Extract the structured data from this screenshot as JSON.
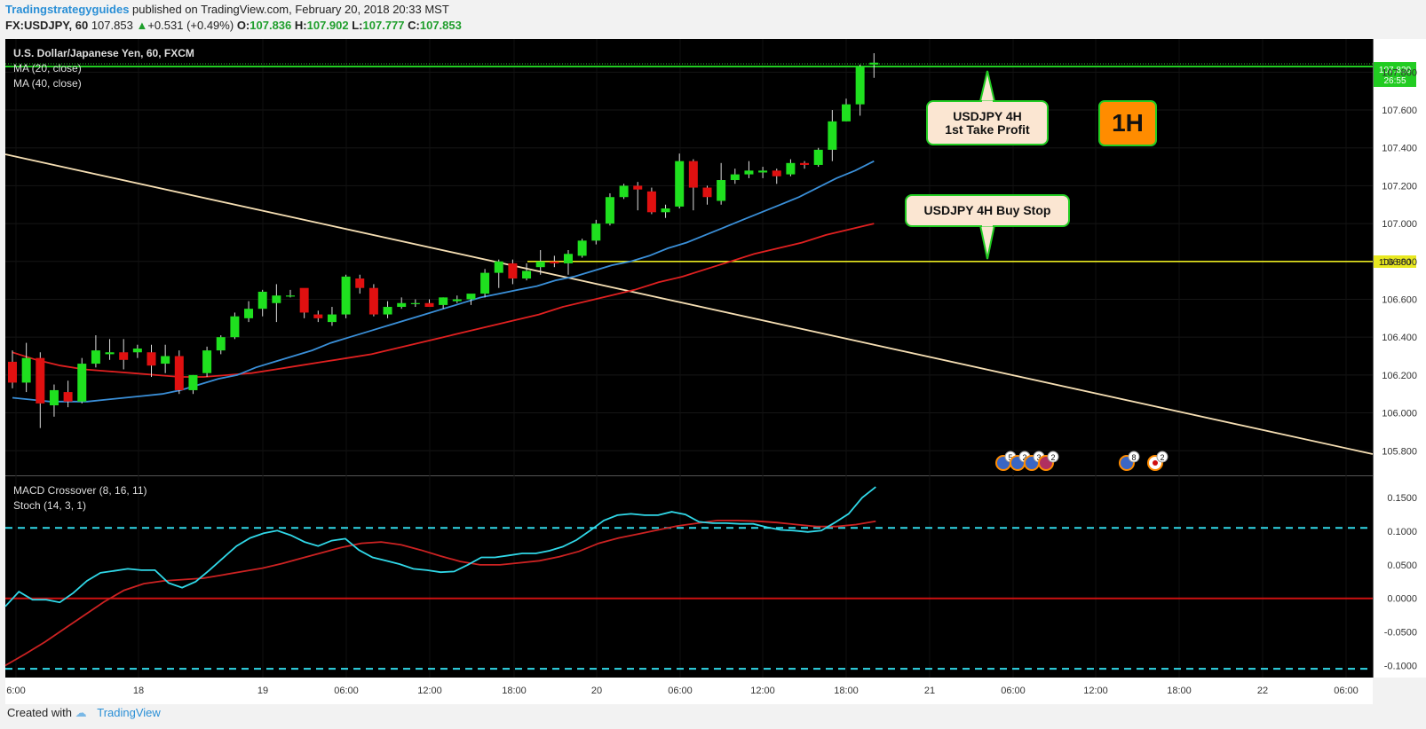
{
  "header": {
    "author": "Tradingstrategyguides",
    "published": " published on TradingView.com, February 20, 2018 20:33 MST",
    "symbol": "FX:USDJPY, 60",
    "last": "107.853",
    "change": "+0.531 (+0.49%)",
    "o_label": "O:",
    "o": "107.836",
    "h_label": "H:",
    "h": "107.902",
    "l_label": "L:",
    "l": "107.777",
    "c_label": "C:",
    "c": "107.853"
  },
  "main_legend": {
    "title": "U.S. Dollar/Japanese Yen, 60, FXCM",
    "ma20": "MA (20, close)",
    "ma40": "MA (40, close)"
  },
  "sub_legend": {
    "macd": "MACD Crossover (8, 16, 11)",
    "stoch": "Stoch (14, 3, 1)"
  },
  "callouts": {
    "take_profit_line1": "USDJPY 4H",
    "take_profit_line2": "1st Take Profit",
    "buy_stop": "USDJPY 4H Buy Stop",
    "timeframe_badge": "1H"
  },
  "price_tags": {
    "resistance": "107.830",
    "resistance_sub": "26:55",
    "support": "106.800"
  },
  "event_badges": [
    "5",
    "2",
    "3",
    "2",
    "8",
    "2"
  ],
  "footer": {
    "created": "Created with",
    "brand": "TradingView"
  },
  "colors": {
    "up": "#1fe01f",
    "down": "#e01010",
    "ma20": "#3a8fd8",
    "ma40": "#e02020",
    "trendline": "#f5deb3",
    "support": "#e8e820",
    "resistance": "#22cc22",
    "macd": "#30d8e8",
    "signal": "#cc2222",
    "badge": "#ff8c00"
  },
  "chart_data": [
    {
      "type": "candlestick",
      "title": "U.S. Dollar/Japanese Yen, 60, FXCM",
      "x_tick_labels": [
        "6:00",
        "18",
        "19",
        "06:00",
        "12:00",
        "18:00",
        "20",
        "06:00",
        "12:00",
        "18:00",
        "21",
        "06:00",
        "12:00",
        "18:00",
        "22",
        "06:00"
      ],
      "y_tick_labels": [
        "105.800",
        "106.000",
        "106.200",
        "106.400",
        "106.600",
        "106.800",
        "107.000",
        "107.200",
        "107.400",
        "107.600",
        "107.800"
      ],
      "ylim": [
        105.67,
        107.98
      ],
      "ohlc": [
        [
          106.27,
          106.33,
          106.13,
          106.16
        ],
        [
          106.16,
          106.37,
          106.11,
          106.29
        ],
        [
          106.29,
          106.32,
          105.92,
          106.05
        ],
        [
          106.04,
          106.15,
          105.98,
          106.12
        ],
        [
          106.11,
          106.17,
          106.03,
          106.06
        ],
        [
          106.06,
          106.29,
          106.05,
          106.26
        ],
        [
          106.26,
          106.41,
          106.24,
          106.33
        ],
        [
          106.31,
          106.39,
          106.28,
          106.32
        ],
        [
          106.32,
          106.39,
          106.23,
          106.28
        ],
        [
          106.32,
          106.36,
          106.29,
          106.34
        ],
        [
          106.32,
          106.36,
          106.19,
          106.25
        ],
        [
          106.26,
          106.36,
          106.21,
          106.3
        ],
        [
          106.3,
          106.33,
          106.1,
          106.12
        ],
        [
          106.12,
          106.2,
          106.1,
          106.2
        ],
        [
          106.21,
          106.35,
          106.19,
          106.33
        ],
        [
          106.33,
          106.41,
          106.31,
          106.4
        ],
        [
          106.4,
          106.53,
          106.39,
          106.51
        ],
        [
          106.5,
          106.59,
          106.48,
          106.55
        ],
        [
          106.55,
          106.65,
          106.51,
          106.64
        ],
        [
          106.58,
          106.68,
          106.48,
          106.62
        ],
        [
          106.62,
          106.65,
          106.61,
          106.62
        ],
        [
          106.66,
          106.64,
          106.5,
          106.53
        ],
        [
          106.52,
          106.54,
          106.48,
          106.5
        ],
        [
          106.48,
          106.56,
          106.46,
          106.52
        ],
        [
          106.52,
          106.73,
          106.5,
          106.72
        ],
        [
          106.71,
          106.73,
          106.63,
          106.66
        ],
        [
          106.66,
          106.68,
          106.51,
          106.52
        ],
        [
          106.52,
          106.59,
          106.5,
          106.56
        ],
        [
          106.56,
          106.61,
          106.55,
          106.58
        ],
        [
          106.58,
          106.6,
          106.56,
          106.58
        ],
        [
          106.58,
          106.6,
          106.56,
          106.56
        ],
        [
          106.57,
          106.61,
          106.55,
          106.61
        ],
        [
          106.59,
          106.62,
          106.58,
          106.6
        ],
        [
          106.6,
          106.62,
          106.57,
          106.63
        ],
        [
          106.63,
          106.76,
          106.61,
          106.74
        ],
        [
          106.74,
          106.81,
          106.66,
          106.8
        ],
        [
          106.79,
          106.81,
          106.68,
          106.71
        ],
        [
          106.71,
          106.79,
          106.7,
          106.75
        ],
        [
          106.77,
          106.86,
          106.73,
          106.8
        ],
        [
          106.8,
          106.83,
          106.77,
          106.79
        ],
        [
          106.79,
          106.86,
          106.73,
          106.84
        ],
        [
          106.83,
          106.92,
          106.82,
          106.91
        ],
        [
          106.91,
          107.02,
          106.89,
          107.0
        ],
        [
          107.0,
          107.16,
          106.99,
          107.14
        ],
        [
          107.14,
          107.21,
          107.13,
          107.2
        ],
        [
          107.2,
          107.22,
          107.07,
          107.18
        ],
        [
          107.17,
          107.19,
          107.05,
          107.06
        ],
        [
          107.06,
          107.1,
          107.03,
          107.08
        ],
        [
          107.09,
          107.37,
          107.08,
          107.33
        ],
        [
          107.33,
          107.34,
          107.07,
          107.19
        ],
        [
          107.19,
          107.2,
          107.1,
          107.14
        ],
        [
          107.12,
          107.32,
          107.1,
          107.23
        ],
        [
          107.23,
          107.29,
          107.21,
          107.26
        ],
        [
          107.26,
          107.33,
          107.24,
          107.28
        ],
        [
          107.27,
          107.3,
          107.24,
          107.28
        ],
        [
          107.28,
          107.29,
          107.21,
          107.25
        ],
        [
          107.26,
          107.34,
          107.25,
          107.32
        ],
        [
          107.32,
          107.33,
          107.29,
          107.31
        ],
        [
          107.31,
          107.4,
          107.3,
          107.39
        ],
        [
          107.39,
          107.6,
          107.33,
          107.54
        ],
        [
          107.54,
          107.66,
          107.54,
          107.63
        ],
        [
          107.63,
          107.84,
          107.57,
          107.83
        ],
        [
          107.84,
          107.9,
          107.77,
          107.85
        ]
      ],
      "ma20": [
        106.08,
        106.07,
        106.06,
        106.06,
        106.06,
        106.07,
        106.08,
        106.09,
        106.1,
        106.12,
        106.15,
        106.18,
        106.2,
        106.24,
        106.27,
        106.3,
        106.33,
        106.37,
        106.4,
        106.43,
        106.46,
        106.49,
        106.52,
        106.55,
        106.58,
        106.61,
        106.63,
        106.65,
        106.67,
        106.7,
        106.72,
        106.75,
        106.78,
        106.8,
        106.83,
        106.87,
        106.9,
        106.94,
        106.98,
        107.02,
        107.06,
        107.1,
        107.14,
        107.19,
        107.24,
        107.28,
        107.33
      ],
      "ma40": [
        106.32,
        106.28,
        106.25,
        106.23,
        106.22,
        106.21,
        106.2,
        106.19,
        106.19,
        106.2,
        106.21,
        106.23,
        106.25,
        106.27,
        106.29,
        106.31,
        106.34,
        106.37,
        106.4,
        106.43,
        106.46,
        106.49,
        106.52,
        106.56,
        106.59,
        106.62,
        106.65,
        106.69,
        106.72,
        106.76,
        106.8,
        106.84,
        106.87,
        106.9,
        106.94,
        106.97,
        107.0
      ],
      "support_level": 106.8,
      "resistance_level": 107.83
    },
    {
      "type": "line",
      "title": "MACD Crossover (8, 16, 11)",
      "y_tick_labels": [
        "-0.1000",
        "-0.0500",
        "0.0000",
        "0.0500",
        "0.1000",
        "0.1500"
      ],
      "ylim": [
        -0.12,
        0.18
      ],
      "reference_lines": [
        0.0,
        0.105,
        -0.105
      ],
      "series": [
        {
          "name": "MACD",
          "values": [
            -0.012,
            0.01,
            -0.002,
            -0.002,
            -0.006,
            0.008,
            0.026,
            0.038,
            0.041,
            0.044,
            0.042,
            0.042,
            0.023,
            0.016,
            0.025,
            0.042,
            0.06,
            0.078,
            0.09,
            0.097,
            0.101,
            0.094,
            0.084,
            0.078,
            0.086,
            0.089,
            0.072,
            0.061,
            0.056,
            0.051,
            0.044,
            0.042,
            0.039,
            0.04,
            0.05,
            0.061,
            0.061,
            0.064,
            0.067,
            0.067,
            0.071,
            0.077,
            0.087,
            0.101,
            0.116,
            0.124,
            0.126,
            0.124,
            0.124,
            0.129,
            0.125,
            0.114,
            0.112,
            0.112,
            0.111,
            0.111,
            0.106,
            0.102,
            0.101,
            0.099,
            0.101,
            0.113,
            0.126,
            0.15,
            0.166
          ]
        },
        {
          "name": "Signal",
          "values": [
            -0.1,
            -0.083,
            -0.065,
            -0.045,
            -0.025,
            -0.005,
            0.012,
            0.022,
            0.026,
            0.028,
            0.03,
            0.035,
            0.04,
            0.045,
            0.052,
            0.06,
            0.068,
            0.076,
            0.082,
            0.084,
            0.08,
            0.072,
            0.063,
            0.055,
            0.05,
            0.05,
            0.053,
            0.056,
            0.062,
            0.07,
            0.082,
            0.09,
            0.096,
            0.102,
            0.108,
            0.112,
            0.116,
            0.116,
            0.115,
            0.113,
            0.11,
            0.107,
            0.107,
            0.11,
            0.115
          ]
        }
      ]
    }
  ]
}
